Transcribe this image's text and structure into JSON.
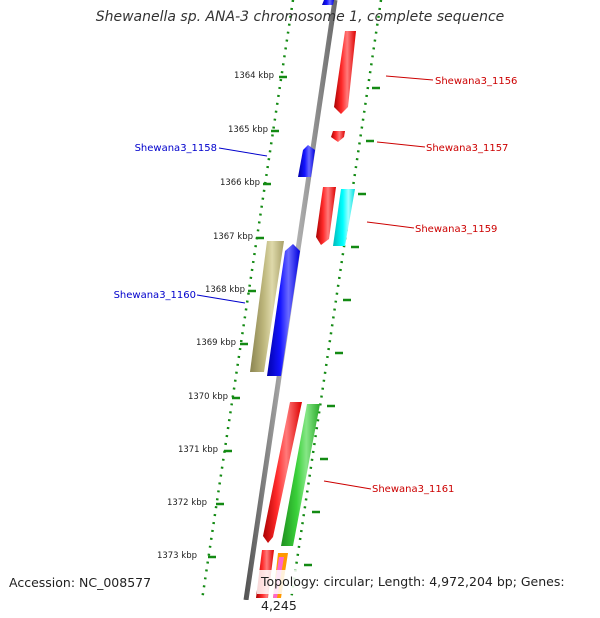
{
  "title": "Shewanella sp. ANA-3 chromosome 1, complete sequence",
  "footer": {
    "accession": "Accession: NC_008577",
    "summary": "Topology: circular; Length: 4,972,204 bp; Genes: 4,245"
  },
  "ticks": [
    {
      "label": "1364 kbp"
    },
    {
      "label": "1365 kbp"
    },
    {
      "label": "1366 kbp"
    },
    {
      "label": "1367 kbp"
    },
    {
      "label": "1368 kbp"
    },
    {
      "label": "1369 kbp"
    },
    {
      "label": "1370 kbp"
    },
    {
      "label": "1371 kbp"
    },
    {
      "label": "1372 kbp"
    },
    {
      "label": "1373 kbp"
    }
  ],
  "gene_labels": [
    {
      "name": "Shewana3_1156",
      "color": "#cc0000"
    },
    {
      "name": "Shewana3_1157",
      "color": "#cc0000"
    },
    {
      "name": "Shewana3_1158",
      "color": "#0000cc"
    },
    {
      "name": "Shewana3_1159",
      "color": "#cc0000"
    },
    {
      "name": "Shewana3_1160",
      "color": "#0000cc"
    },
    {
      "name": "Shewana3_1161",
      "color": "#cc0000"
    }
  ],
  "colors": {
    "backbone": "#808080",
    "ruler_dots": "#138a13",
    "gene_red": "#ff0000",
    "gene_blue": "#0000ff",
    "gene_cyan": "#00ffff",
    "gene_green": "#33cc33",
    "gene_olive": "#b8b074"
  }
}
